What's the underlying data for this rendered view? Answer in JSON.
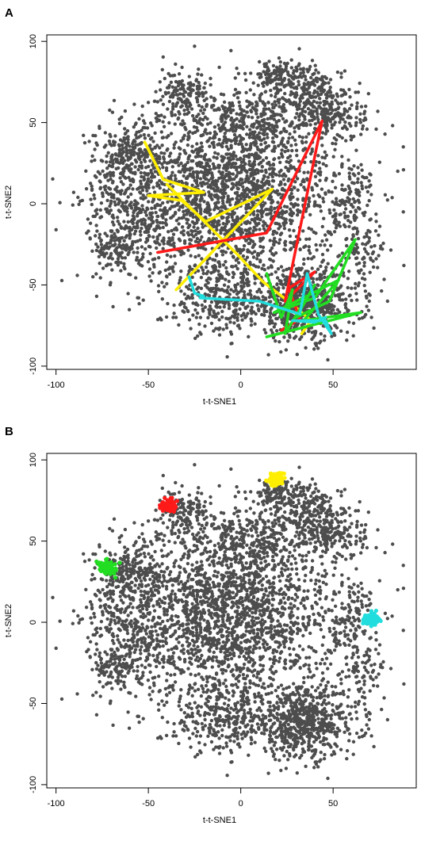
{
  "panels": [
    {
      "letter": "A",
      "xlabel": "t-t-SNE1",
      "ylabel": "t-t-SNE2",
      "xlim": [
        -105,
        95
      ],
      "ylim": [
        -102,
        104
      ],
      "xticks": [
        -100,
        -50,
        0,
        50
      ],
      "yticks": [
        -100,
        -50,
        0,
        50,
        100
      ],
      "trajectories": [
        {
          "color": "#ffee00",
          "points": [
            [
              -52,
              38
            ],
            [
              -42,
              15
            ],
            [
              -20,
              7
            ],
            [
              -50,
              5
            ],
            [
              -32,
              2
            ],
            [
              -19,
              -11
            ],
            [
              17,
              9
            ],
            [
              -35,
              -53
            ]
          ]
        },
        {
          "color": "#ffee00",
          "points": [
            [
              -40,
              12
            ],
            [
              -2,
              -31
            ],
            [
              12,
              -48
            ],
            [
              28,
              -62
            ],
            [
              38,
              -72
            ],
            [
              33,
              -80
            ]
          ]
        },
        {
          "color": "#ff1a1a",
          "points": [
            [
              -45,
              -30
            ],
            [
              14,
              -18
            ],
            [
              44,
              51
            ],
            [
              24,
              -60
            ],
            [
              40,
              -42
            ],
            [
              26,
              -52
            ],
            [
              32,
              -71
            ],
            [
              22,
              -78
            ]
          ]
        },
        {
          "color": "#22dd22",
          "points": [
            [
              14,
              -43
            ],
            [
              22,
              -70
            ],
            [
              28,
              -53
            ],
            [
              24,
              -80
            ],
            [
              40,
              -50
            ],
            [
              30,
              -70
            ],
            [
              48,
              -60
            ],
            [
              62,
              -22
            ],
            [
              40,
              -58
            ],
            [
              18,
              -67
            ],
            [
              53,
              -47
            ],
            [
              34,
              -72
            ],
            [
              65,
              -67
            ],
            [
              14,
              -82
            ]
          ]
        },
        {
          "color": "#22dddd",
          "points": [
            [
              -28,
              -45
            ],
            [
              -25,
              -55
            ],
            [
              -20,
              -57
            ],
            [
              -22,
              -58
            ],
            [
              10,
              -60
            ],
            [
              32,
              -68
            ],
            [
              36,
              -43
            ],
            [
              42,
              -68
            ],
            [
              49,
              -80
            ],
            [
              46,
              -72
            ],
            [
              28,
              -72
            ],
            [
              40,
              -73
            ],
            [
              46,
              -70
            ]
          ]
        }
      ]
    },
    {
      "letter": "B",
      "xlabel": "t-t-SNE1",
      "ylabel": "t-t-SNE2",
      "xlim": [
        -105,
        95
      ],
      "ylim": [
        -102,
        104
      ],
      "xticks": [
        -100,
        -50,
        0,
        50
      ],
      "yticks": [
        -100,
        -50,
        0,
        50,
        100
      ],
      "clusters": [
        {
          "color": "#ff1a1a",
          "x": -39,
          "y": 72
        },
        {
          "color": "#22dd22",
          "x": -72,
          "y": 34
        },
        {
          "color": "#ffee00",
          "x": 19,
          "y": 88
        },
        {
          "color": "#22dddd",
          "x": 71,
          "y": 2
        }
      ]
    }
  ],
  "colors": {
    "points": "#4d4d4d"
  }
}
